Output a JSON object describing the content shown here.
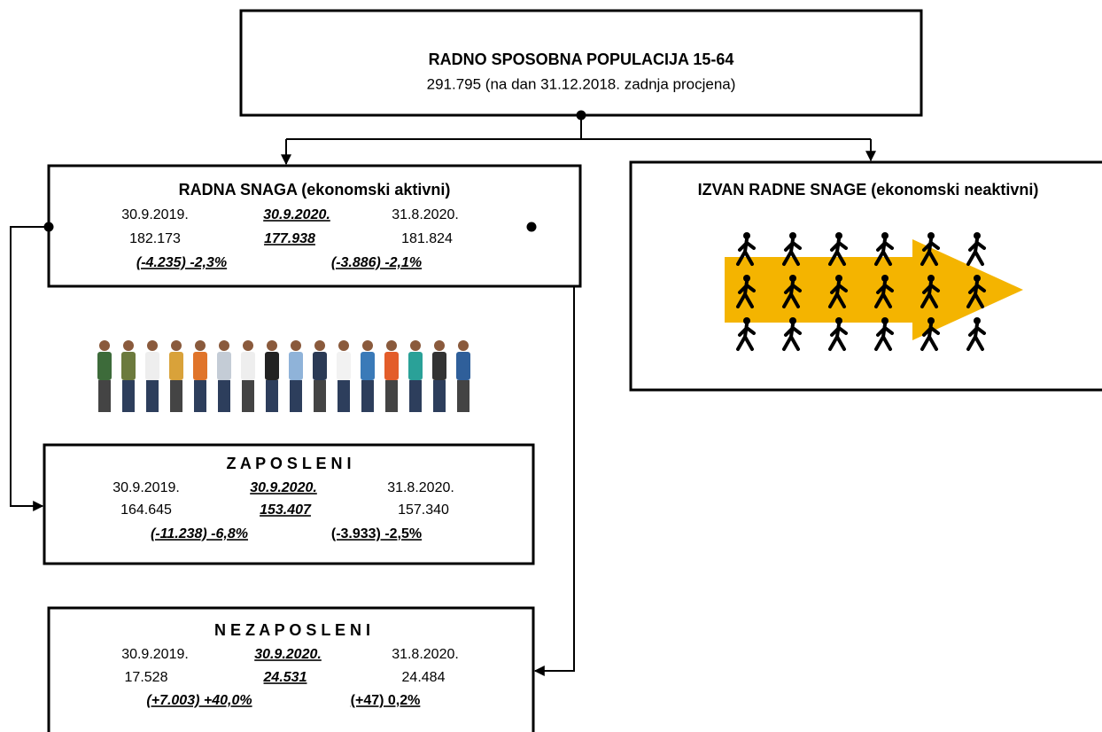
{
  "top": {
    "title": "RADNO SPOSOBNA POPULACIJA 15-64",
    "subtitle": "291.795 (na dan 31.12.2018. zadnja procjena)"
  },
  "labour_force": {
    "title": "RADNA SNAGA (ekonomski aktivni)",
    "dates": [
      "30.9.2019.",
      "30.9.2020.",
      "31.8.2020."
    ],
    "values": [
      "182.173",
      "177.938",
      "181.824"
    ],
    "changes": [
      "(-4.235) -2,3%",
      "(-3.886) -2,1%"
    ]
  },
  "inactive": {
    "title": "IZVAN RADNE SNAGE (ekonomski neaktivni)"
  },
  "employed": {
    "title": "Z A P O S L E N I",
    "dates": [
      "30.9.2019.",
      "30.9.2020.",
      "31.8.2020."
    ],
    "values": [
      "164.645",
      "153.407",
      "157.340"
    ],
    "changes": [
      "(-11.238) -6,8%",
      "(-3.933) -2,5%"
    ]
  },
  "unemployed": {
    "title": "N E Z A P O S L E N I",
    "dates": [
      "30.9.2019.",
      "30.9.2020.",
      "31.8.2020."
    ],
    "values": [
      "17.528",
      "24.531",
      "24.484"
    ],
    "changes": [
      "(+7.003) +40,0%",
      "(+47) 0,2%"
    ]
  }
}
